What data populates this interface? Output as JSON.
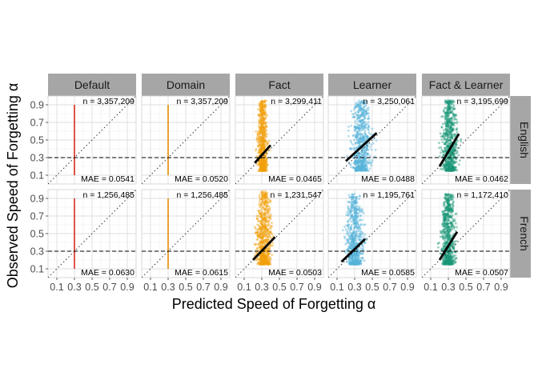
{
  "chart_data": {
    "type": "scatter",
    "xlabel": "Predicted Speed of Forgetting α",
    "ylabel": "Observed Speed of Forgetting α",
    "x_ticks": [
      "0.1",
      "0.3",
      "0.5",
      "0.7",
      "0.9"
    ],
    "y_ticks": [
      "0.1",
      "0.3",
      "0.5",
      "0.7",
      "0.9"
    ],
    "xlim": [
      0.0,
      1.0
    ],
    "ylim": [
      0.0,
      1.0
    ],
    "grid": true,
    "reference_line_y": 0.3,
    "identity_line": true,
    "columns": [
      "Default",
      "Domain",
      "Fact",
      "Learner",
      "Fact & Learner"
    ],
    "rows": [
      "English",
      "French"
    ],
    "column_colors": {
      "Default": "#d62a1e",
      "Domain": "#e68a00",
      "Fact": "#f2a00c",
      "Learner": "#56b4d9",
      "Fact & Learner": "#1a9677"
    },
    "panels": [
      {
        "row": "English",
        "column": "Default",
        "n": "n = 3,357,209",
        "mae": "MAE = 0.0541",
        "kind": "vline",
        "x": 0.3,
        "y_range": [
          0.1,
          0.9
        ]
      },
      {
        "row": "English",
        "column": "Domain",
        "n": "n = 3,357,209",
        "mae": "MAE = 0.0520",
        "kind": "vline",
        "x": 0.3,
        "y_range": [
          0.1,
          0.9
        ]
      },
      {
        "row": "English",
        "column": "Fact",
        "n": "n = 3,299,411",
        "mae": "MAE = 0.0465",
        "kind": "cloud",
        "x_range": [
          0.22,
          0.4
        ],
        "y_range": [
          0.15,
          0.95
        ],
        "fit": [
          [
            0.22,
            0.24
          ],
          [
            0.4,
            0.44
          ]
        ]
      },
      {
        "row": "English",
        "column": "Learner",
        "n": "n = 3,250,061",
        "mae": "MAE = 0.0488",
        "kind": "cloud",
        "x_range": [
          0.2,
          0.55
        ],
        "y_range": [
          0.15,
          0.95
        ],
        "fit": [
          [
            0.2,
            0.26
          ],
          [
            0.55,
            0.58
          ]
        ]
      },
      {
        "row": "English",
        "column": "Fact & Learner",
        "n": "n = 3,195,699",
        "mae": "MAE = 0.0462",
        "kind": "cloud",
        "x_range": [
          0.18,
          0.45
        ],
        "y_range": [
          0.15,
          0.95
        ],
        "fit": [
          [
            0.2,
            0.2
          ],
          [
            0.42,
            0.57
          ]
        ]
      },
      {
        "row": "French",
        "column": "Default",
        "n": "n = 1,256,485",
        "mae": "MAE = 0.0630",
        "kind": "vline",
        "x": 0.3,
        "y_range": [
          0.1,
          0.9
        ]
      },
      {
        "row": "French",
        "column": "Domain",
        "n": "n = 1,256,485",
        "mae": "MAE = 0.0615",
        "kind": "vline",
        "x": 0.3,
        "y_range": [
          0.1,
          0.9
        ]
      },
      {
        "row": "French",
        "column": "Fact",
        "n": "n = 1,231,547",
        "mae": "MAE = 0.0503",
        "kind": "cloud",
        "x_range": [
          0.2,
          0.45
        ],
        "y_range": [
          0.15,
          0.98
        ],
        "fit": [
          [
            0.2,
            0.2
          ],
          [
            0.45,
            0.46
          ]
        ]
      },
      {
        "row": "French",
        "column": "Learner",
        "n": "n = 1,195,761",
        "mae": "MAE = 0.0585",
        "kind": "cloud",
        "x_range": [
          0.15,
          0.45
        ],
        "y_range": [
          0.15,
          0.95
        ],
        "fit": [
          [
            0.15,
            0.18
          ],
          [
            0.42,
            0.44
          ]
        ]
      },
      {
        "row": "French",
        "column": "Fact & Learner",
        "n": "n = 1,172,410",
        "mae": "MAE = 0.0507",
        "kind": "cloud",
        "x_range": [
          0.18,
          0.42
        ],
        "y_range": [
          0.15,
          0.95
        ],
        "fit": [
          [
            0.2,
            0.2
          ],
          [
            0.4,
            0.52
          ]
        ]
      }
    ]
  }
}
